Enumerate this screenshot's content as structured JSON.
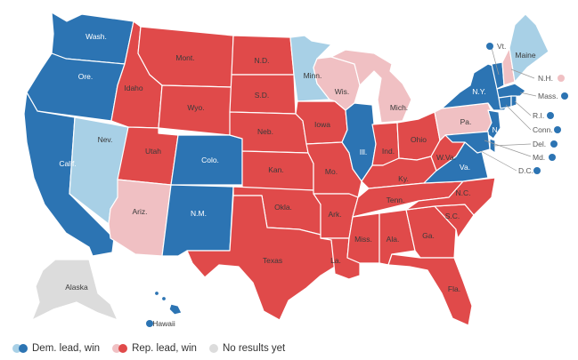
{
  "colors": {
    "dem_win": "#2c74b3",
    "dem_lead": "#a8d0e6",
    "rep_win": "#e04a4a",
    "rep_lead": "#f0c0c3",
    "no_results": "#dcdcdc"
  },
  "legend": {
    "dem": "Dem. lead, win",
    "rep": "Rep. lead, win",
    "none": "No results yet"
  },
  "states": {
    "WA": {
      "label": "Wash.",
      "status": "dem_win"
    },
    "OR": {
      "label": "Ore.",
      "status": "dem_win"
    },
    "CA": {
      "label": "Calif.",
      "status": "dem_win"
    },
    "NV": {
      "label": "Nev.",
      "status": "dem_lead"
    },
    "ID": {
      "label": "Idaho",
      "status": "rep_win"
    },
    "MT": {
      "label": "Mont.",
      "status": "rep_win"
    },
    "WY": {
      "label": "Wyo.",
      "status": "rep_win"
    },
    "UT": {
      "label": "Utah",
      "status": "rep_win"
    },
    "AZ": {
      "label": "Ariz.",
      "status": "rep_lead"
    },
    "CO": {
      "label": "Colo.",
      "status": "dem_win"
    },
    "NM": {
      "label": "N.M.",
      "status": "dem_win"
    },
    "ND": {
      "label": "N.D.",
      "status": "rep_win"
    },
    "SD": {
      "label": "S.D.",
      "status": "rep_win"
    },
    "NE": {
      "label": "Neb.",
      "status": "rep_win"
    },
    "KS": {
      "label": "Kan.",
      "status": "rep_win"
    },
    "OK": {
      "label": "Okla.",
      "status": "rep_win"
    },
    "TX": {
      "label": "Texas",
      "status": "rep_win"
    },
    "MN": {
      "label": "Minn.",
      "status": "dem_lead"
    },
    "IA": {
      "label": "Iowa",
      "status": "rep_win"
    },
    "MO": {
      "label": "Mo.",
      "status": "rep_win"
    },
    "AR": {
      "label": "Ark.",
      "status": "rep_win"
    },
    "LA": {
      "label": "La.",
      "status": "rep_win"
    },
    "WI": {
      "label": "Wis.",
      "status": "rep_lead"
    },
    "IL": {
      "label": "Ill.",
      "status": "dem_win"
    },
    "MI": {
      "label": "Mich.",
      "status": "rep_lead"
    },
    "IN": {
      "label": "Ind.",
      "status": "rep_win"
    },
    "OH": {
      "label": "Ohio",
      "status": "rep_win"
    },
    "KY": {
      "label": "Ky.",
      "status": "rep_win"
    },
    "TN": {
      "label": "Tenn.",
      "status": "rep_win"
    },
    "MS": {
      "label": "Miss.",
      "status": "rep_win"
    },
    "AL": {
      "label": "Ala.",
      "status": "rep_win"
    },
    "GA": {
      "label": "Ga.",
      "status": "rep_win"
    },
    "FL": {
      "label": "Fla.",
      "status": "rep_win"
    },
    "SC": {
      "label": "S.C.",
      "status": "rep_win"
    },
    "NC": {
      "label": "N.C.",
      "status": "rep_win"
    },
    "VA": {
      "label": "Va.",
      "status": "dem_win"
    },
    "WV": {
      "label": "W.Va.",
      "status": "rep_win"
    },
    "PA": {
      "label": "Pa.",
      "status": "rep_lead"
    },
    "NY": {
      "label": "N.Y.",
      "status": "dem_win"
    },
    "NJ": {
      "label": "N.J.",
      "status": "dem_win"
    },
    "ME": {
      "label": "Maine",
      "status": "dem_lead"
    },
    "AK": {
      "label": "Alaska",
      "status": "no_results"
    },
    "HI": {
      "label": "Hawaii",
      "status": "dem_win"
    }
  },
  "small_states": [
    {
      "key": "VT",
      "label": "Vt.",
      "status": "dem_win"
    },
    {
      "key": "NH",
      "label": "N.H.",
      "status": "rep_lead"
    },
    {
      "key": "MA",
      "label": "Mass.",
      "status": "dem_win"
    },
    {
      "key": "RI",
      "label": "R.I.",
      "status": "dem_win"
    },
    {
      "key": "CT",
      "label": "Conn.",
      "status": "dem_win"
    },
    {
      "key": "DE",
      "label": "Del.",
      "status": "dem_win"
    },
    {
      "key": "MD",
      "label": "Md.",
      "status": "dem_win"
    },
    {
      "key": "DC",
      "label": "D.C.",
      "status": "dem_win"
    }
  ]
}
